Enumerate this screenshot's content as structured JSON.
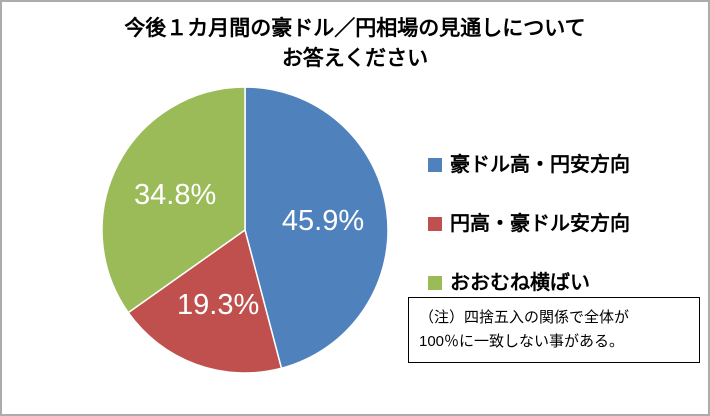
{
  "chart_data": {
    "type": "pie",
    "title_lines": [
      "今後１カ月間の豪ドル／円相場の見通しについて",
      "お答えください"
    ],
    "slices": [
      {
        "label": "豪ドル高・円安方向",
        "value": 45.9,
        "display": "45.9%",
        "color": "#4F81BD"
      },
      {
        "label": "円高・豪ドル安方向",
        "value": 19.3,
        "display": "19.3%",
        "color": "#C0504D"
      },
      {
        "label": "おおむね横ばい",
        "value": 34.8,
        "display": "34.8%",
        "color": "#9BBB59"
      }
    ],
    "start_angle_deg": 0,
    "direction": "clockwise",
    "legend_position": "right",
    "label_color": "#FFFFFF",
    "note_lines": [
      "（注）四捨五入の関係で全体が",
      "100％に一致しない事がある。"
    ]
  }
}
